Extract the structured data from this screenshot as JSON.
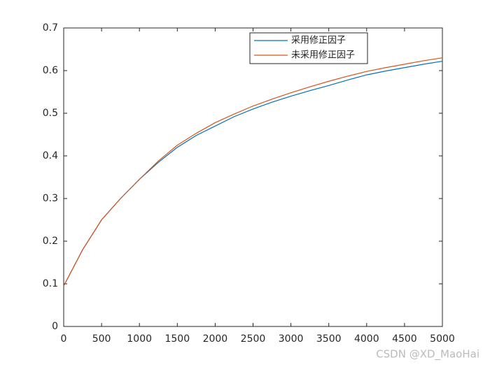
{
  "chart_data": {
    "type": "line",
    "x": [
      0,
      250,
      500,
      750,
      1000,
      1250,
      1500,
      1750,
      2000,
      2250,
      2500,
      2750,
      3000,
      3250,
      3500,
      3750,
      4000,
      4250,
      4500,
      4750,
      5000
    ],
    "series": [
      {
        "name": "采用修正因子",
        "color": "#0072bd",
        "values": [
          0.095,
          0.18,
          0.25,
          0.3,
          0.345,
          0.385,
          0.42,
          0.448,
          0.47,
          0.492,
          0.51,
          0.526,
          0.54,
          0.553,
          0.565,
          0.578,
          0.59,
          0.599,
          0.607,
          0.615,
          0.622
        ]
      },
      {
        "name": "未采用修正因子",
        "color": "#d95319",
        "values": [
          0.095,
          0.18,
          0.25,
          0.3,
          0.345,
          0.388,
          0.425,
          0.453,
          0.478,
          0.498,
          0.517,
          0.533,
          0.548,
          0.562,
          0.575,
          0.587,
          0.598,
          0.607,
          0.615,
          0.623,
          0.63
        ]
      }
    ],
    "xlim": [
      0,
      5000
    ],
    "xticks": [
      0,
      500,
      1000,
      1500,
      2000,
      2500,
      3000,
      3500,
      4000,
      4500,
      5000
    ],
    "ylim": [
      0,
      0.7
    ],
    "yticks": [
      0,
      0.1,
      0.2,
      0.3,
      0.4,
      0.5,
      0.6,
      0.7
    ],
    "legend": "top-right",
    "watermark": "CSDN @XD_MaoHai"
  }
}
